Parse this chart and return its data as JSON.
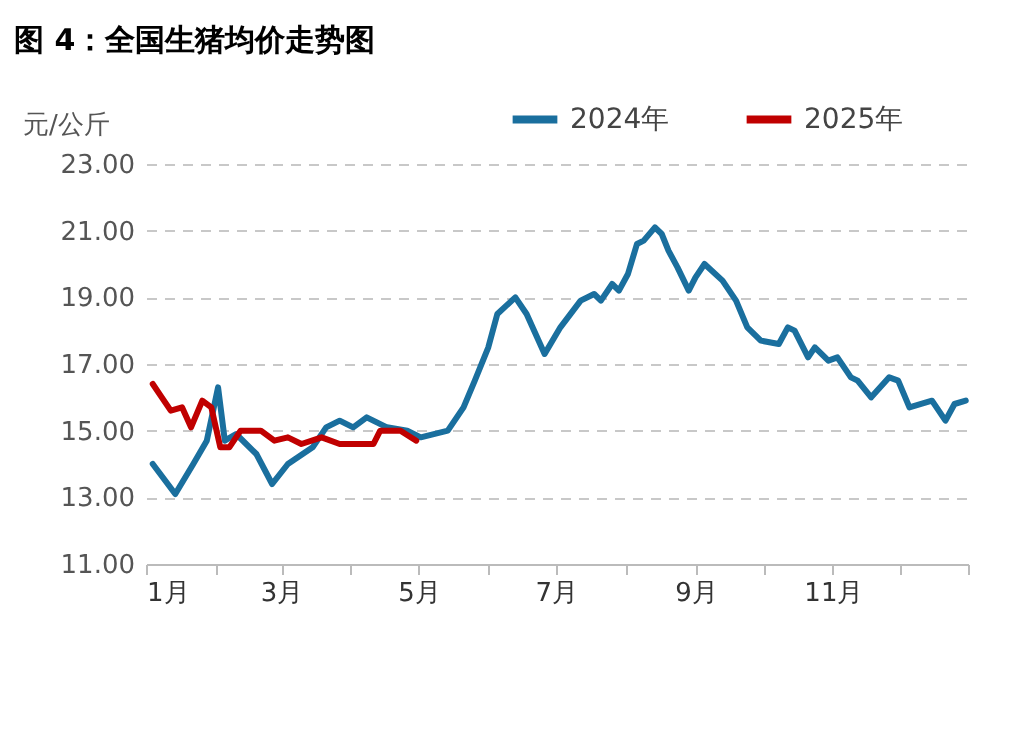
{
  "chart_data": {
    "type": "line",
    "title": "图 4：全国生猪均价走势图",
    "ylabel": "元/公斤",
    "xlim": [
      "--01-01",
      "--12-31"
    ],
    "xticks": [
      {
        "value": "--01-01",
        "label": "1月"
      },
      {
        "value": "--02-01",
        "label": null
      },
      {
        "value": "--03-01",
        "label": "3月"
      },
      {
        "value": "--04-01",
        "label": null
      },
      {
        "value": "--05-01",
        "label": "5月"
      },
      {
        "value": "--06-01",
        "label": null
      },
      {
        "value": "--07-01",
        "label": "7月"
      },
      {
        "value": "--08-01",
        "label": null
      },
      {
        "value": "--09-01",
        "label": "9月"
      },
      {
        "value": "--10-01",
        "label": null
      },
      {
        "value": "--11-01",
        "label": "11月"
      },
      {
        "value": "--12-01",
        "label": null
      },
      {
        "value": "--12-31",
        "label": null
      }
    ],
    "ylim": [
      11,
      23
    ],
    "yticks": [
      {
        "value": 11,
        "label": "11.00"
      },
      {
        "value": 13,
        "label": "13.00"
      },
      {
        "value": 15,
        "label": "15.00"
      },
      {
        "value": 17,
        "label": "17.00"
      },
      {
        "value": 19,
        "label": "19.00"
      },
      {
        "value": 21,
        "label": "21.00"
      },
      {
        "value": 23,
        "label": "23.00"
      }
    ],
    "grid": "y",
    "legend": "top right",
    "line_style": "solid",
    "marker": "none",
    "series": [
      {
        "name": "2024年",
        "color": "#1a6f9e",
        "x": [
          "--01-04",
          "--01-14",
          "--01-22",
          "--01-28",
          "--02-02",
          "--02-05",
          "--02-10",
          "--02-19",
          "--02-26",
          "--03-04",
          "--03-15",
          "--03-21",
          "--03-27",
          "--04-02",
          "--04-08",
          "--04-17",
          "--04-26",
          "--05-02",
          "--05-14",
          "--05-21",
          "--05-26",
          "--06-01",
          "--06-05",
          "--06-13",
          "--06-18",
          "--06-26",
          "--07-03",
          "--07-12",
          "--07-18",
          "--07-21",
          "--07-26",
          "--07-29",
          "--08-02",
          "--08-06",
          "--08-09",
          "--08-14",
          "--08-17",
          "--08-20",
          "--08-24",
          "--08-29",
          "--09-01",
          "--09-05",
          "--09-13",
          "--09-19",
          "--09-24",
          "--09-30",
          "--10-08",
          "--10-12",
          "--10-15",
          "--10-21",
          "--10-24",
          "--10-30",
          "--11-03",
          "--11-09",
          "--11-12",
          "--11-18",
          "--11-26",
          "--11-30",
          "--12-05",
          "--12-15",
          "--12-21",
          "--12-25",
          "--12-30"
        ],
        "values": [
          14.0,
          13.1,
          14.0,
          14.7,
          16.3,
          14.7,
          14.9,
          14.3,
          13.4,
          14.0,
          14.5,
          15.1,
          15.3,
          15.1,
          15.4,
          15.1,
          15.0,
          14.8,
          15.0,
          15.7,
          16.5,
          17.5,
          18.5,
          19.0,
          18.5,
          17.3,
          18.1,
          18.9,
          19.1,
          18.9,
          19.4,
          19.2,
          19.7,
          20.6,
          20.7,
          21.1,
          20.9,
          20.4,
          19.9,
          19.2,
          19.6,
          20.0,
          19.5,
          18.9,
          18.1,
          17.7,
          17.6,
          18.1,
          18.0,
          17.2,
          17.5,
          17.1,
          17.2,
          16.6,
          16.5,
          16.0,
          16.6,
          16.5,
          15.7,
          15.9,
          15.3,
          15.8,
          15.9
        ]
      },
      {
        "name": "2025年",
        "color": "#c00000",
        "x": [
          "--01-04",
          "--01-08",
          "--01-12",
          "--01-17",
          "--01-21",
          "--01-26",
          "--01-30",
          "--02-03",
          "--02-07",
          "--02-12",
          "--02-21",
          "--02-27",
          "--03-04",
          "--03-10",
          "--03-19",
          "--03-27",
          "--04-11",
          "--04-14",
          "--04-23",
          "--04-30"
        ],
        "values": [
          16.4,
          16.0,
          15.6,
          15.7,
          15.1,
          15.9,
          15.7,
          14.5,
          14.5,
          15.0,
          15.0,
          14.7,
          14.8,
          14.6,
          14.8,
          14.6,
          14.6,
          15.0,
          15.0,
          14.7
        ]
      }
    ]
  }
}
